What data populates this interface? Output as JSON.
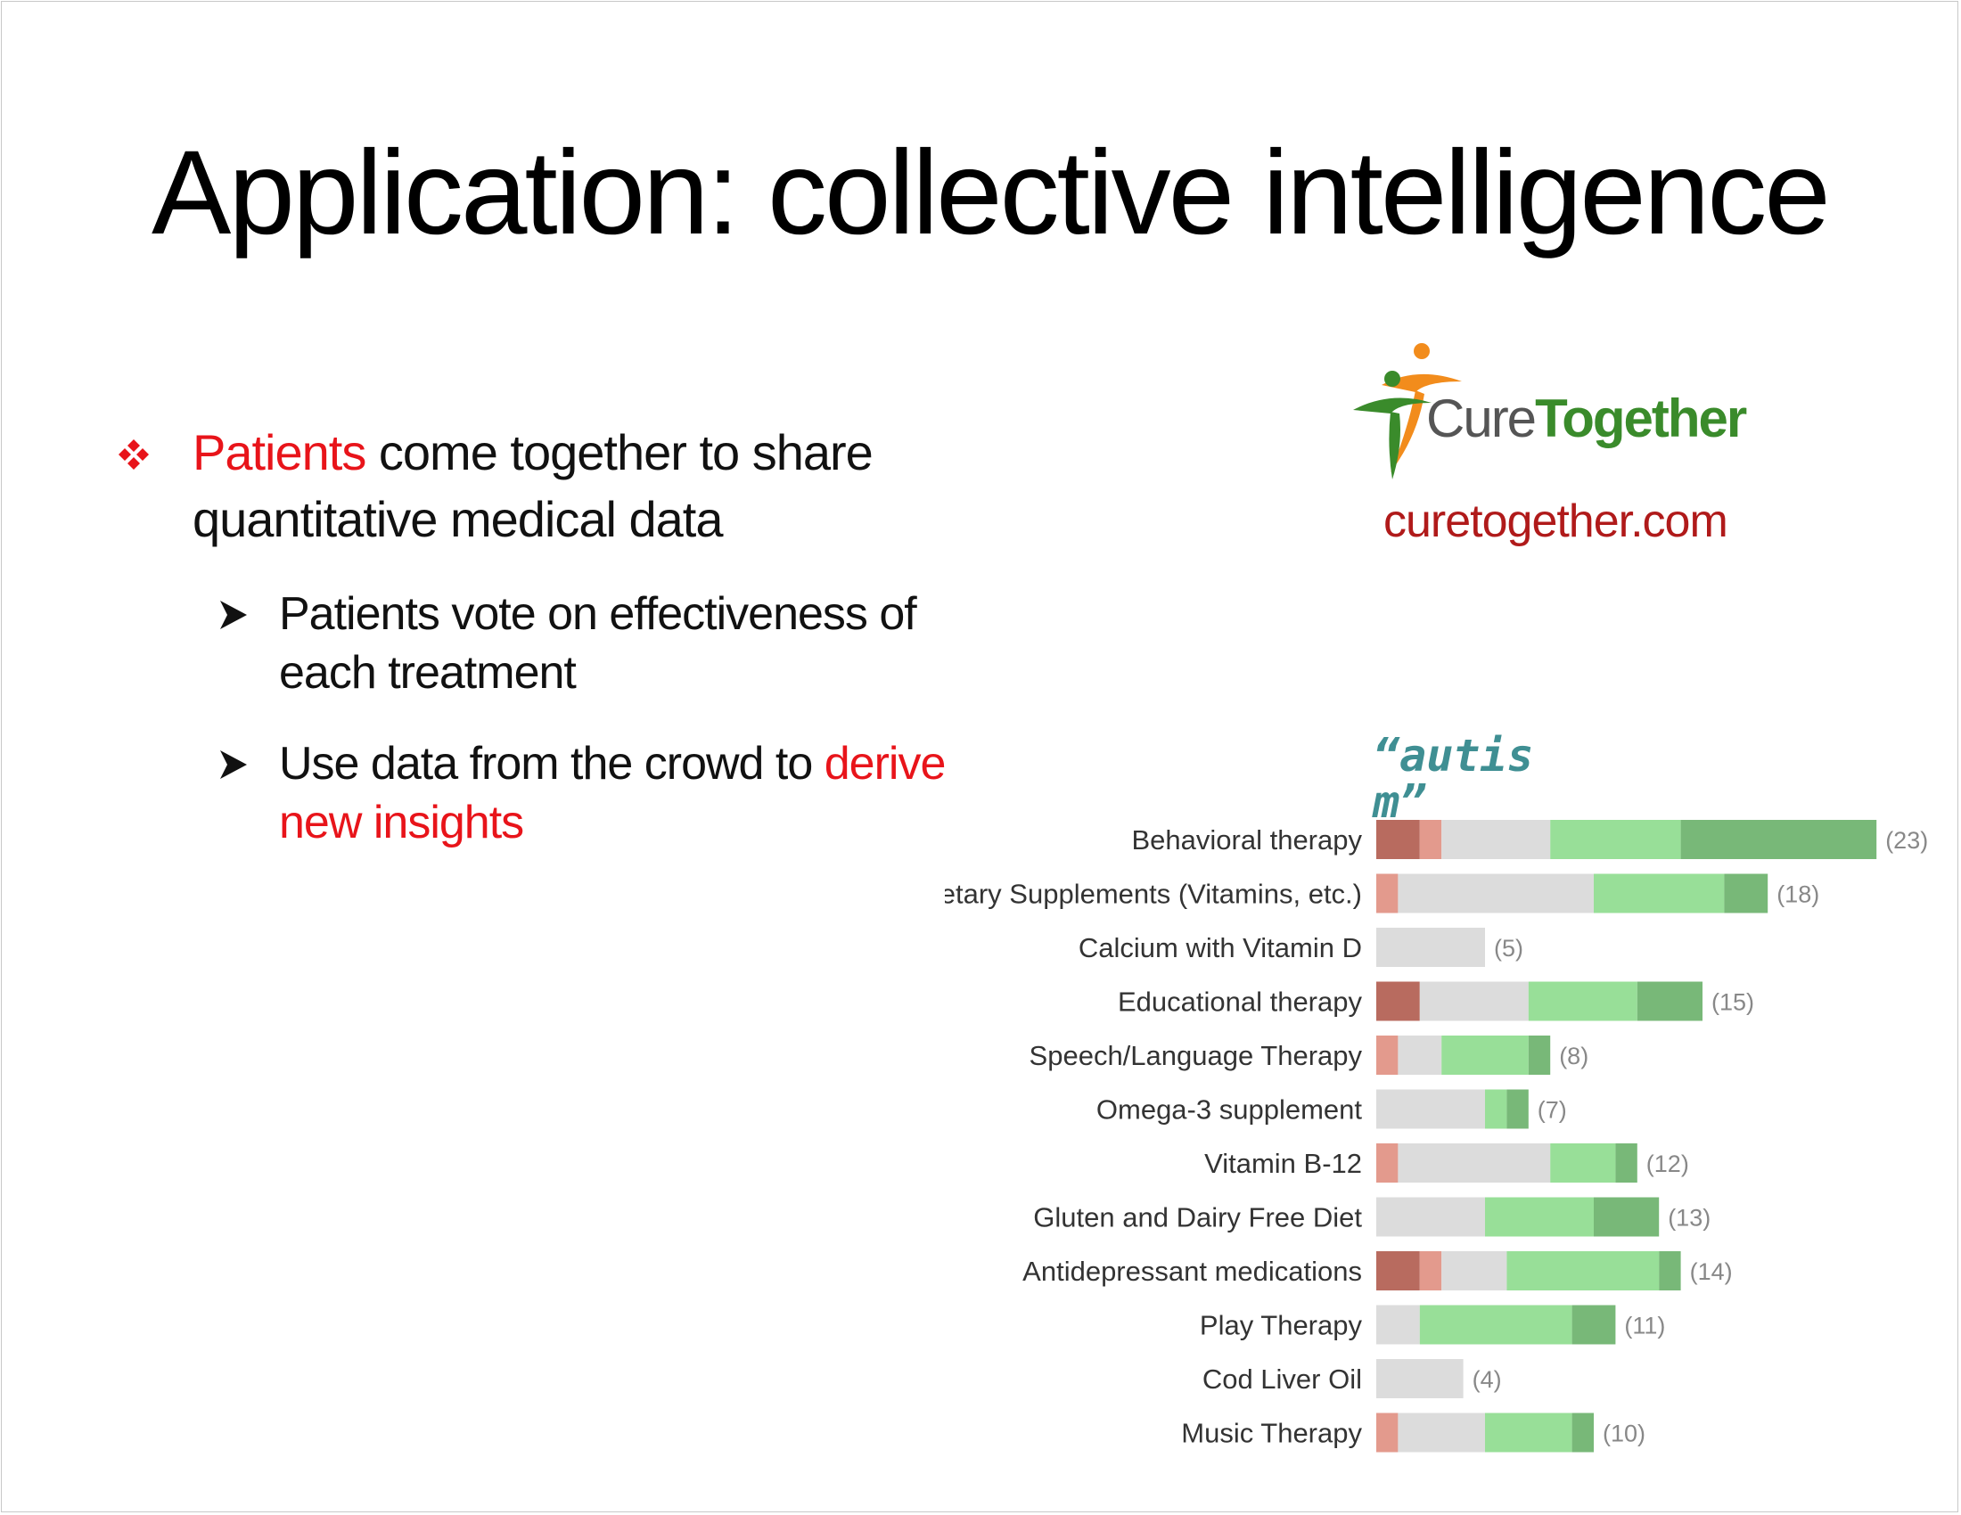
{
  "slide": {
    "title": "Application: collective intelligence"
  },
  "bullets": {
    "main": {
      "highlight": "Patients",
      "rest": " come together to share quantitative medical data"
    },
    "sub": [
      {
        "text": "Patients vote on effectiveness of each treatment"
      },
      {
        "before": "Use data from the crowd to ",
        "highlight": "derive new insights"
      }
    ]
  },
  "brand": {
    "logo_text_plain": "Cure",
    "logo_text_bold": "Together",
    "site": "curetogether.com"
  },
  "query_label": "“autism”",
  "colors": {
    "accent_red": "#e8141a",
    "site_red": "#b01a1a",
    "query_teal": "#3f8f93",
    "dark_red": "#b86b5f",
    "light_red": "#e39a8d",
    "gray": "#dcdcdc",
    "light_green": "#98df98",
    "dark_green": "#78b878"
  },
  "chart_data": {
    "type": "bar",
    "orientation": "horizontal",
    "stacked": true,
    "title": "",
    "xlabel": "",
    "ylabel": "",
    "segment_order": [
      "dark_red",
      "light_red",
      "gray",
      "light_green",
      "dark_green"
    ],
    "categories": [
      "Behavioral therapy",
      "Dietary Supplements (Vitamins, etc.)",
      "Calcium with Vitamin D",
      "Educational therapy",
      "Speech/Language Therapy",
      "Omega-3 supplement",
      "Vitamin B-12",
      "Gluten and Dairy Free Diet",
      "Antidepressant medications",
      "Play Therapy",
      "Cod Liver Oil",
      "Music Therapy"
    ],
    "counts": [
      "(23)",
      "(18)",
      "(5)",
      "(15)",
      "(8)",
      "(7)",
      "(12)",
      "(13)",
      "(14)",
      "(11)",
      "(4)",
      "(10)"
    ],
    "series": [
      {
        "name": "dark_red",
        "values": [
          2,
          0,
          0,
          2,
          0,
          0,
          0,
          0,
          2,
          0,
          0,
          0
        ]
      },
      {
        "name": "light_red",
        "values": [
          1,
          1,
          0,
          0,
          1,
          0,
          1,
          0,
          1,
          0,
          0,
          1
        ]
      },
      {
        "name": "gray",
        "values": [
          5,
          9,
          5,
          5,
          2,
          5,
          7,
          5,
          3,
          2,
          4,
          4
        ]
      },
      {
        "name": "light_green",
        "values": [
          6,
          6,
          0,
          5,
          4,
          1,
          3,
          5,
          7,
          7,
          0,
          4
        ]
      },
      {
        "name": "dark_green",
        "values": [
          9,
          2,
          0,
          3,
          1,
          1,
          1,
          3,
          1,
          2,
          0,
          1
        ]
      }
    ]
  }
}
